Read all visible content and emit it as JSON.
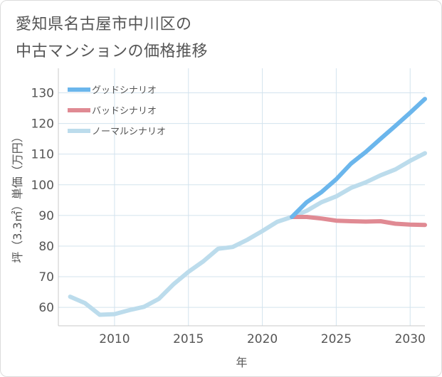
{
  "title_line1": "愛知県名古屋市中川区の",
  "title_line2": "中古マンションの価格推移",
  "chart_data": {
    "type": "line",
    "xlabel": "年",
    "ylabel": "坪（3.3㎡）単価（万円）",
    "xlim": [
      2006.2,
      2031
    ],
    "ylim": [
      54,
      138
    ],
    "x_ticks": [
      2010,
      2015,
      2020,
      2025,
      2030
    ],
    "y_ticks": [
      60,
      70,
      80,
      90,
      100,
      110,
      120,
      130
    ],
    "grid": true,
    "legend_position": "top-left",
    "series": [
      {
        "name": "グッドシナリオ",
        "color": "#6bb6ec",
        "x": [
          2022,
          2023,
          2024,
          2025,
          2026,
          2027,
          2028,
          2029,
          2030,
          2031
        ],
        "y": [
          89.5,
          94.3,
          97.6,
          101.8,
          106.9,
          110.7,
          115.0,
          119.2,
          123.5,
          128.0
        ]
      },
      {
        "name": "バッドシナリオ",
        "color": "#e08a93",
        "x": [
          2022,
          2023,
          2024,
          2025,
          2026,
          2027,
          2028,
          2029,
          2030,
          2031
        ],
        "y": [
          89.5,
          89.5,
          89.0,
          88.3,
          88.1,
          88.0,
          88.1,
          87.3,
          87.0,
          86.9
        ]
      },
      {
        "name": "ノーマルシナリオ",
        "color": "#bcdcec",
        "x": [
          2007,
          2008,
          2009,
          2010,
          2011,
          2012,
          2013,
          2014,
          2015,
          2016,
          2017,
          2018,
          2019,
          2020,
          2021,
          2022,
          2023,
          2024,
          2025,
          2026,
          2027,
          2028,
          2029,
          2030,
          2031
        ],
        "y": [
          63.5,
          61.4,
          57.6,
          57.8,
          59.1,
          60.2,
          62.8,
          67.6,
          71.6,
          75.0,
          79.1,
          79.7,
          82.1,
          84.9,
          87.9,
          89.5,
          91.5,
          94.3,
          96.2,
          99.0,
          100.8,
          103.1,
          105.0,
          107.8,
          110.3
        ]
      }
    ]
  }
}
